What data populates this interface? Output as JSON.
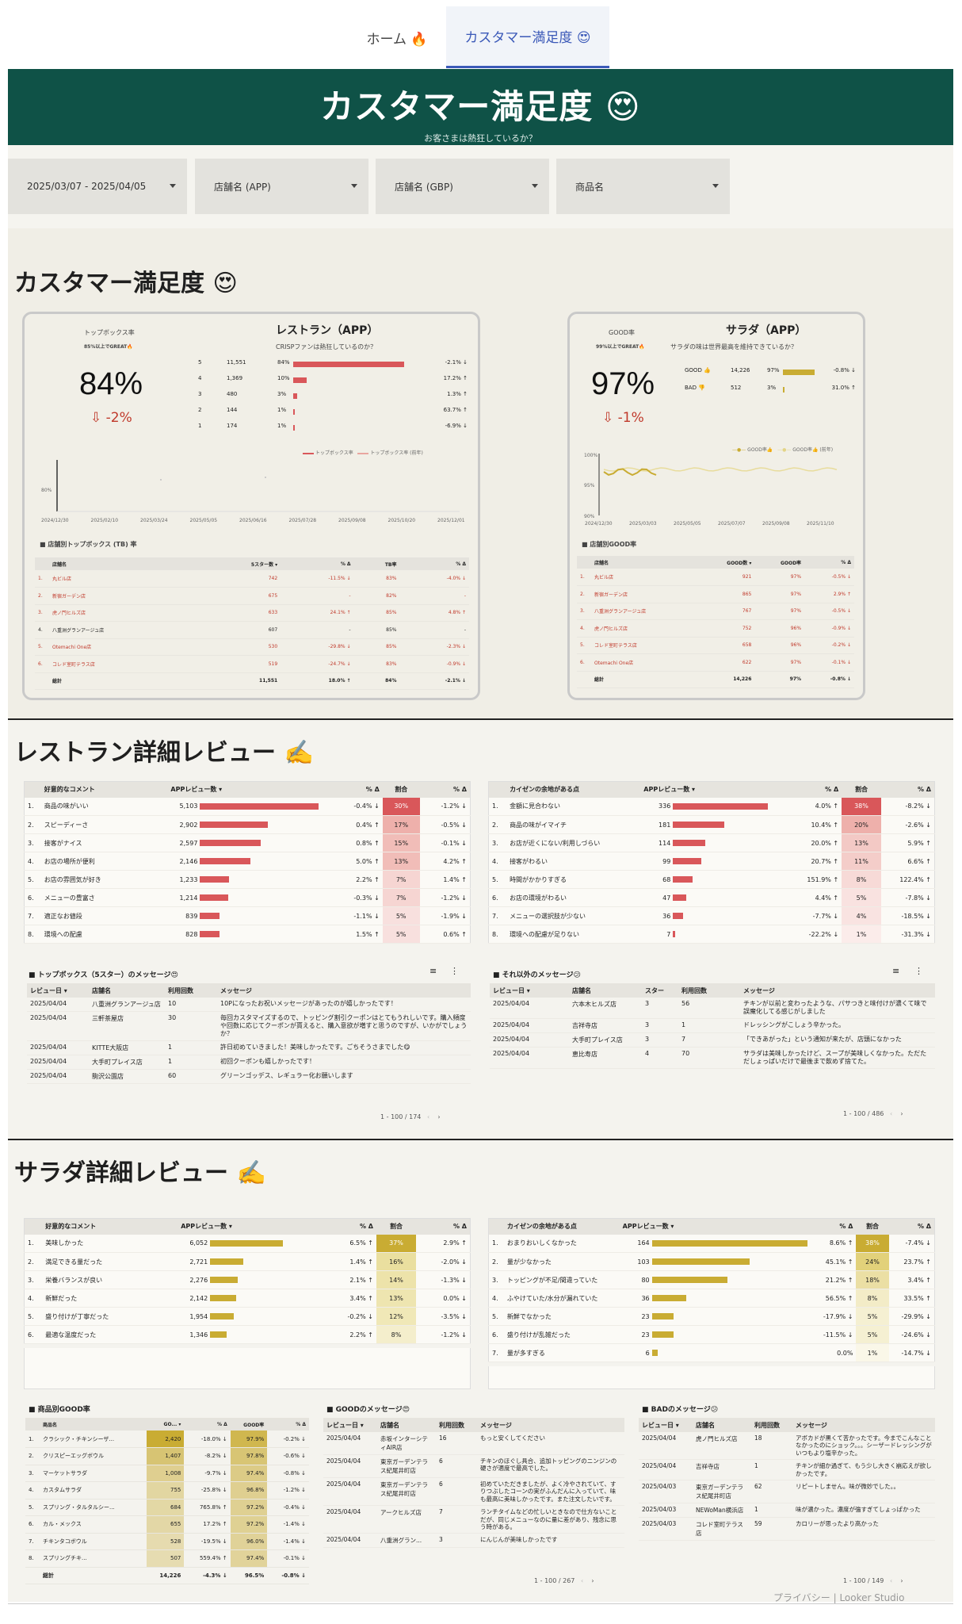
{
  "nav": {
    "home": "ホーム 🔥",
    "satisfaction": "カスタマー満足度 😍"
  },
  "banner": {
    "title": "カスタマー満足度 😍",
    "subtitle": "お客さまは熱狂しているか？"
  },
  "filters": {
    "date": "2025/03/07 - 2025/04/05",
    "store_app": "店舗名 (APP)",
    "store_gbp": "店舗名 (GBP)",
    "product": "商品名"
  },
  "section1": {
    "title": "カスタマー満足度 😍"
  },
  "restaurant": {
    "kpi_label": "トップボックス率",
    "kpi_note": "85%以上でGREAT🔥",
    "title": "レストラン（APP）",
    "subtitle": "CRISPファンは熱狂しているのか？",
    "kpi_value": "84%",
    "kpi_delta": "-2%",
    "stars": [
      {
        "star": "5",
        "count": "11,551",
        "pct": "84%",
        "pct_num": 84,
        "delta": "-2.1%",
        "dir": "down"
      },
      {
        "star": "4",
        "count": "1,369",
        "pct": "10%",
        "pct_num": 10,
        "delta": "17.2%",
        "dir": "up"
      },
      {
        "star": "3",
        "count": "480",
        "pct": "3%",
        "pct_num": 3,
        "delta": "1.3%",
        "dir": "up"
      },
      {
        "star": "2",
        "count": "144",
        "pct": "1%",
        "pct_num": 1,
        "delta": "63.7%",
        "dir": "up"
      },
      {
        "star": "1",
        "count": "174",
        "pct": "1%",
        "pct_num": 1,
        "delta": "-6.9%",
        "dir": "down"
      }
    ],
    "legend1": "トップボックス率",
    "legend2": "トップボックス率 (前年)",
    "chart_ytick": "80%",
    "chart_xticks": [
      "2024/12/30",
      "2025/02/10",
      "2025/03/24",
      "2025/05/05",
      "2025/06/16",
      "2025/07/28",
      "2025/09/08",
      "2025/10/20",
      "2025/12/01"
    ],
    "table_title": "■ 店舗別トップボックス (TB) 率",
    "table_headers": [
      "店舗名",
      "5スター数 ▾",
      "% Δ",
      "TB率",
      "% Δ"
    ],
    "rows": [
      {
        "no": "1.",
        "name": "丸ビル店",
        "count": "742",
        "d1": "-11.5% ↓",
        "tb": "83%",
        "d2": "-4.0% ↓",
        "link": true
      },
      {
        "no": "2.",
        "name": "新宿ガーデン店",
        "count": "675",
        "d1": "-",
        "tb": "82%",
        "d2": "-",
        "link": true
      },
      {
        "no": "3.",
        "name": "虎ノ門ヒルズ店",
        "count": "633",
        "d1": "24.1% ↑",
        "tb": "85%",
        "d2": "4.8% ↑",
        "link": true
      },
      {
        "no": "4.",
        "name": "八重洲グランアージュ店",
        "count": "607",
        "d1": "-",
        "tb": "85%",
        "d2": "-",
        "link": false
      },
      {
        "no": "5.",
        "name": "Otemachi One店",
        "count": "530",
        "d1": "-29.8% ↓",
        "tb": "85%",
        "d2": "-2.3% ↓",
        "link": true
      },
      {
        "no": "6.",
        "name": "コレド室町テラス店",
        "count": "519",
        "d1": "-24.7% ↓",
        "tb": "83%",
        "d2": "-0.9% ↓",
        "link": true
      }
    ],
    "total": {
      "label": "総計",
      "count": "11,551",
      "d1": "18.0% ↑",
      "tb": "84%",
      "d2": "-2.1% ↓"
    }
  },
  "salad": {
    "kpi_label": "GOOD率",
    "kpi_note": "99%以上でGREAT🔥",
    "title": "サラダ（APP）",
    "subtitle": "サラダの味は世界最高を維持できているか？",
    "kpi_value": "97%",
    "kpi_delta": "-1%",
    "rows": [
      {
        "label": "GOOD 👍",
        "count": "14,226",
        "pct": "97%",
        "pct_num": 97,
        "delta": "-0.8% ↓"
      },
      {
        "label": "BAD 👎",
        "count": "512",
        "pct": "3%",
        "pct_num": 3,
        "delta": "31.0% ↑"
      }
    ],
    "legend1": "GOOD率👍",
    "legend2": "GOOD率👍 (前年)",
    "chart_yticks": [
      "100%",
      "95%",
      "90%"
    ],
    "chart_xticks": [
      "2024/12/30",
      "2025/03/03",
      "2025/05/05",
      "2025/07/07",
      "2025/09/08",
      "2025/11/10"
    ],
    "table_title": "■ 店舗別GOOD率",
    "table_headers": [
      "店舗名",
      "GOOD数 ▾",
      "GOOD率",
      "% Δ"
    ],
    "store_rows": [
      {
        "no": "1.",
        "name": "丸ビル店",
        "count": "921",
        "rate": "97%",
        "d": "-0.5% ↓"
      },
      {
        "no": "2.",
        "name": "新宿ガーデン店",
        "count": "865",
        "rate": "97%",
        "d": "2.9% ↑"
      },
      {
        "no": "3.",
        "name": "八重洲グランアージュ店",
        "count": "767",
        "rate": "97%",
        "d": "-0.5% ↓"
      },
      {
        "no": "4.",
        "name": "虎ノ門ヒルズ店",
        "count": "752",
        "rate": "96%",
        "d": "-0.9% ↓"
      },
      {
        "no": "5.",
        "name": "コレド室町テラス店",
        "count": "658",
        "rate": "96%",
        "d": "-0.2% ↓"
      },
      {
        "no": "6.",
        "name": "Otemachi One店",
        "count": "622",
        "rate": "97%",
        "d": "-0.1% ↓"
      }
    ],
    "total": {
      "label": "総計",
      "count": "14,226",
      "rate": "97%",
      "d": "-0.8% ↓"
    }
  },
  "section2": {
    "title": "レストラン詳細レビュー ✍️"
  },
  "rest_good": {
    "headers": [
      "好意的なコメント",
      "APPレビュー数 ▾",
      "% Δ",
      "割合",
      "% Δ"
    ],
    "rows": [
      {
        "no": "1.",
        "label": "商品の味がいい",
        "count": "5,103",
        "v": 5103,
        "d1": "-0.4% ↓",
        "share": "30%",
        "d2": "-1.2% ↓"
      },
      {
        "no": "2.",
        "label": "スピーディーさ",
        "count": "2,902",
        "v": 2902,
        "d1": "0.4% ↑",
        "share": "17%",
        "d2": "-0.5% ↓"
      },
      {
        "no": "3.",
        "label": "接客がナイス",
        "count": "2,597",
        "v": 2597,
        "d1": "0.8% ↑",
        "share": "15%",
        "d2": "-0.1% ↓"
      },
      {
        "no": "4.",
        "label": "お店の場所が便利",
        "count": "2,146",
        "v": 2146,
        "d1": "5.0% ↑",
        "share": "13%",
        "d2": "4.2% ↑"
      },
      {
        "no": "5.",
        "label": "お店の雰囲気が好き",
        "count": "1,233",
        "v": 1233,
        "d1": "2.2% ↑",
        "share": "7%",
        "d2": "1.4% ↑"
      },
      {
        "no": "6.",
        "label": "メニューの豊富さ",
        "count": "1,214",
        "v": 1214,
        "d1": "-0.3% ↓",
        "share": "7%",
        "d2": "-1.2% ↓"
      },
      {
        "no": "7.",
        "label": "適正なお値段",
        "count": "839",
        "v": 839,
        "d1": "-1.1% ↓",
        "share": "5%",
        "d2": "-1.9% ↓"
      },
      {
        "no": "8.",
        "label": "環境への配慮",
        "count": "828",
        "v": 828,
        "d1": "1.5% ↑",
        "share": "5%",
        "d2": "0.6% ↑"
      }
    ]
  },
  "rest_bad": {
    "headers": [
      "カイゼンの余地がある点",
      "APPレビュー数 ▾",
      "% Δ",
      "割合",
      "% Δ"
    ],
    "rows": [
      {
        "no": "1.",
        "label": "金額に見合わない",
        "count": "336",
        "v": 336,
        "d1": "4.0% ↑",
        "share": "38%",
        "d2": "-8.2% ↓"
      },
      {
        "no": "2.",
        "label": "商品の味がイマイチ",
        "count": "181",
        "v": 181,
        "d1": "10.4% ↑",
        "share": "20%",
        "d2": "-2.6% ↓"
      },
      {
        "no": "3.",
        "label": "お店が近くにない/利用しづらい",
        "count": "114",
        "v": 114,
        "d1": "20.0% ↑",
        "share": "13%",
        "d2": "5.9% ↑"
      },
      {
        "no": "4.",
        "label": "接客がわるい",
        "count": "99",
        "v": 99,
        "d1": "20.7% ↑",
        "share": "11%",
        "d2": "6.6% ↑"
      },
      {
        "no": "5.",
        "label": "時間がかかりすぎる",
        "count": "68",
        "v": 68,
        "d1": "151.9% ↑",
        "share": "8%",
        "d2": "122.4% ↑"
      },
      {
        "no": "6.",
        "label": "お店の環境がわるい",
        "count": "47",
        "v": 47,
        "d1": "4.4% ↑",
        "share": "5%",
        "d2": "-7.8% ↓"
      },
      {
        "no": "7.",
        "label": "メニューの選択肢が少ない",
        "count": "36",
        "v": 36,
        "d1": "-7.7% ↓",
        "share": "4%",
        "d2": "-18.5% ↓"
      },
      {
        "no": "8.",
        "label": "環境への配慮が足りない",
        "count": "7",
        "v": 7,
        "d1": "-22.2% ↓",
        "share": "1%",
        "d2": "-31.3% ↓"
      }
    ]
  },
  "topbox_msgs": {
    "title": "■ トップボックス（5スター）のメッセージ😍",
    "headers": [
      "レビュー日 ▾",
      "店舗名",
      "利用回数",
      "メッセージ"
    ],
    "rows": [
      {
        "date": "2025/04/04",
        "store": "八重洲グランアージュ店",
        "count": "10",
        "msg": "10Pになったお祝いメッセージがあったのが嬉しかったです！"
      },
      {
        "date": "2025/04/04",
        "store": "三軒茶屋店",
        "count": "30",
        "msg": "毎回カスタマイズするので、トッピング割引クーポンはとてもうれしいです。購入頻度や回数に応じてクーポンが貰えると、購入意欲が増すと思うのですが、いかがでしょうか？"
      },
      {
        "date": "2025/04/04",
        "store": "KITTE大阪店",
        "count": "1",
        "msg": "許日初めていきました！美味しかったです。ごちそうさまでした😋"
      },
      {
        "date": "2025/04/04",
        "store": "大手町プレイス店",
        "count": "1",
        "msg": "初回クーポンも嬉しかったです！"
      },
      {
        "date": "2025/04/04",
        "store": "駒沢公園店",
        "count": "60",
        "msg": "グリーンゴッデス、レギュラー化お願いします"
      }
    ],
    "pager": "1 - 100 / 174"
  },
  "other_msgs": {
    "title": "■ それ以外のメッセージ😕",
    "headers": [
      "レビュー日 ▾",
      "店舗名",
      "スター",
      "利用回数",
      "メッセージ"
    ],
    "rows": [
      {
        "date": "2025/04/04",
        "store": "六本木ヒルズ店",
        "star": "3",
        "count": "56",
        "msg": "チキンが以前と変わったような、パサつきと味付けが濃くて味で誤魔化してる感じがしました"
      },
      {
        "date": "2025/04/04",
        "store": "吉祥寺店",
        "star": "3",
        "count": "1",
        "msg": "ドレッシングがこしょう辛かった。"
      },
      {
        "date": "2025/04/04",
        "store": "大手町プレイス店",
        "star": "3",
        "count": "7",
        "msg": "「できあがった」という通知が来たが、店頭になかった"
      },
      {
        "date": "2025/04/04",
        "store": "恵比寿店",
        "star": "4",
        "count": "70",
        "msg": "サラダは美味しかったけど、スープが美味しくなかった。ただただしょっぱいだけで最後まで飲めず捨てた。"
      }
    ],
    "pager": "1 - 100 / 486"
  },
  "section3": {
    "title": "サラダ詳細レビュー ✍️"
  },
  "salad_good": {
    "headers": [
      "好意的なコメント",
      "APPレビュー数 ▾",
      "% Δ",
      "割合",
      "% Δ"
    ],
    "rows": [
      {
        "no": "1.",
        "label": "美味しかった",
        "count": "6,052",
        "v": 6052,
        "d1": "6.5% ↑",
        "share": "37%",
        "d2": "2.9% ↑"
      },
      {
        "no": "2.",
        "label": "満足できる量だった",
        "count": "2,721",
        "v": 2721,
        "d1": "1.4% ↑",
        "share": "16%",
        "d2": "-2.0% ↓"
      },
      {
        "no": "3.",
        "label": "栄養バランスが良い",
        "count": "2,276",
        "v": 2276,
        "d1": "2.1% ↑",
        "share": "14%",
        "d2": "-1.3% ↓"
      },
      {
        "no": "4.",
        "label": "新鮮だった",
        "count": "2,142",
        "v": 2142,
        "d1": "3.4% ↑",
        "share": "13%",
        "d2": "0.0% ↓"
      },
      {
        "no": "5.",
        "label": "盛り付けが丁寧だった",
        "count": "1,954",
        "v": 1954,
        "d1": "-0.2% ↓",
        "share": "12%",
        "d2": "-3.5% ↓"
      },
      {
        "no": "6.",
        "label": "最適な温度だった",
        "count": "1,346",
        "v": 1346,
        "d1": "2.2% ↑",
        "share": "8%",
        "d2": "-1.2% ↓"
      }
    ]
  },
  "salad_bad": {
    "headers": [
      "カイゼンの余地がある点",
      "APPレビュー数 ▾",
      "% Δ",
      "割合",
      "% Δ"
    ],
    "rows": [
      {
        "no": "1.",
        "label": "おまりおいしくなかった",
        "count": "164",
        "v": 164,
        "d1": "8.6% ↑",
        "share": "38%",
        "d2": "-7.4% ↓"
      },
      {
        "no": "2.",
        "label": "量が少なかった",
        "count": "103",
        "v": 103,
        "d1": "45.1% ↑",
        "share": "24%",
        "d2": "23.7% ↑"
      },
      {
        "no": "3.",
        "label": "トッピングが不足/間違っていた",
        "count": "80",
        "v": 80,
        "d1": "21.2% ↑",
        "share": "18%",
        "d2": "3.4% ↑"
      },
      {
        "no": "4.",
        "label": "ふやけていた/水分が漏れていた",
        "count": "36",
        "v": 36,
        "d1": "56.5% ↑",
        "share": "8%",
        "d2": "33.5% ↑"
      },
      {
        "no": "5.",
        "label": "新鮮でなかった",
        "count": "23",
        "v": 23,
        "d1": "-17.9% ↓",
        "share": "5%",
        "d2": "-29.9% ↓"
      },
      {
        "no": "6.",
        "label": "盛り付けが乱雑だった",
        "count": "23",
        "v": 23,
        "d1": "-11.5% ↓",
        "share": "5%",
        "d2": "-24.6% ↓"
      },
      {
        "no": "7.",
        "label": "量が多すぎる",
        "count": "6",
        "v": 6,
        "d1": "0.0%",
        "share": "1%",
        "d2": "-14.7% ↓"
      }
    ]
  },
  "product_good": {
    "title": "■ 商品別GOOD率",
    "headers": [
      "商品名",
      "GO... ▾",
      "% Δ",
      "GOOD率",
      "% Δ"
    ],
    "rows": [
      {
        "no": "1.",
        "name": "クラシック・チキンシーザ...",
        "count": "2,420",
        "d1": "-18.0% ↓",
        "rate": "97.9%",
        "d2": "-0.2% ↓",
        "shade": 1.0
      },
      {
        "no": "2.",
        "name": "クリスピーエッグボウル",
        "count": "1,407",
        "d1": "-8.2% ↓",
        "rate": "97.8%",
        "d2": "-0.6% ↓",
        "shade": 0.6
      },
      {
        "no": "3.",
        "name": "マーケットサラダ",
        "count": "1,008",
        "d1": "-9.7% ↓",
        "rate": "97.4%",
        "d2": "-0.8% ↓",
        "shade": 0.42
      },
      {
        "no": "4.",
        "name": "カスタムサラダ",
        "count": "755",
        "d1": "-25.8% ↓",
        "rate": "96.8%",
        "d2": "-1.2% ↓",
        "shade": 0.31
      },
      {
        "no": "5.",
        "name": "スプリング・タルタルシー...",
        "count": "684",
        "d1": "765.8% ↑",
        "rate": "97.2%",
        "d2": "-0.4% ↓",
        "shade": 0.28
      },
      {
        "no": "6.",
        "name": "カル・メックス",
        "count": "655",
        "d1": "17.2% ↑",
        "rate": "97.2%",
        "d2": "-1.4% ↓",
        "shade": 0.27
      },
      {
        "no": "7.",
        "name": "チキンタコボウル",
        "count": "528",
        "d1": "-19.5% ↓",
        "rate": "96.0%",
        "d2": "-1.4% ↓",
        "shade": 0.22
      },
      {
        "no": "8.",
        "name": "スプリングチキ...",
        "count": "507",
        "d1": "559.4% ↑",
        "rate": "97.4%",
        "d2": "-0.1% ↓",
        "shade": 0.2
      }
    ],
    "total": {
      "label": "総計",
      "count": "14,226",
      "d1": "-4.3% ↓",
      "rate": "96.5%",
      "d2": "-0.8% ↓"
    }
  },
  "good_msgs": {
    "title": "■ GOODのメッセージ😍",
    "headers": [
      "レビュー日 ▾",
      "店舗名",
      "利用回数",
      "メッセージ"
    ],
    "rows": [
      {
        "date": "2025/04/04",
        "store": "赤坂インターシティAIR店",
        "count": "16",
        "msg": "もっと安くしてください"
      },
      {
        "date": "2025/04/04",
        "store": "東京ガーデンテラス紀尾井町店",
        "count": "6",
        "msg": "チキンのほぐし具合、追加トッピングのニンジンの硬さが適度で最高でした。"
      },
      {
        "date": "2025/04/04",
        "store": "東京ガーデンテラス紀尾井町店",
        "count": "6",
        "msg": "初めていただきましたが、よく冷やされていて、すりつぶしたコーンの実がふんだんに入っていて、味も最高に美味しかったです。また注文したいです。"
      },
      {
        "date": "2025/04/04",
        "store": "アークヒルズ店",
        "count": "7",
        "msg": "ランチタイムなどの忙しいときなので仕方ないことだが、同じメニューなのに量に差があり、残念に思う時がある。"
      },
      {
        "date": "2025/04/04",
        "store": "八重洲グラン...",
        "count": "3",
        "msg": "にんじんが美味しかったです"
      }
    ],
    "pager": "1 - 100 / 267"
  },
  "bad_msgs": {
    "title": "■ BADのメッセージ😕",
    "headers": [
      "レビュー日 ▾",
      "店舗名",
      "利用回数",
      "メッセージ"
    ],
    "rows": [
      {
        "date": "2025/04/04",
        "store": "虎ノ門ヒルズ店",
        "count": "18",
        "msg": "アボカドが黒くて苦かったです。今までこんなことなかったのにショック。。。シーザードレッシングがいつもより塩辛かった。"
      },
      {
        "date": "2025/04/04",
        "store": "吉祥寺店",
        "count": "1",
        "msg": "チキンが細か過ぎて、もう少し大きく崩応えが欲しかったです。"
      },
      {
        "date": "2025/04/03",
        "store": "東京ガーデンテラス紀尾井町店",
        "count": "62",
        "msg": "リピートしません。味が微妙でした。。"
      },
      {
        "date": "2025/04/03",
        "store": "NEWoMan横浜店",
        "count": "1",
        "msg": "味が濃かった。濃度が強すぎてしょっぱかった"
      },
      {
        "date": "2025/04/03",
        "store": "コレド室町テラス店",
        "count": "59",
        "msg": "カロリーが思ったより高かった"
      }
    ],
    "pager": "1 - 100 / 149"
  },
  "footer": {
    "privacy": "プライバシー",
    "brand": "Looker Studio"
  },
  "colors": {
    "teal": "#0f5247",
    "red": "#d9575a",
    "gold": "#c9ac33",
    "bg": "#f0eee6"
  }
}
